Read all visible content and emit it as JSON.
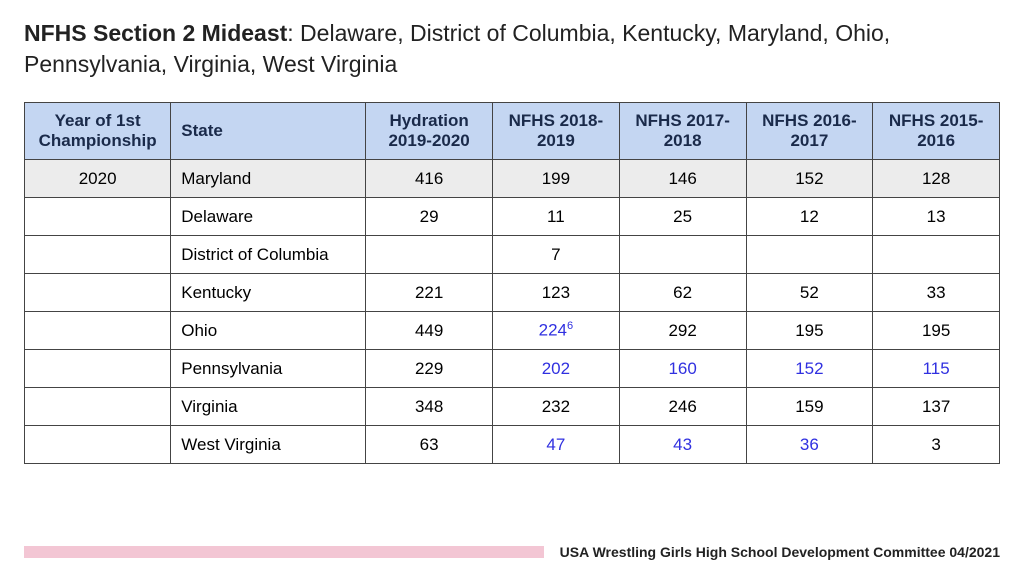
{
  "title": {
    "bold": "NFHS Section 2 Mideast",
    "rest": ": Delaware, District of Columbia, Kentucky, Maryland, Ohio, Pennsylvania, Virginia, West Virginia"
  },
  "table": {
    "headers": {
      "year": "Year of 1st Championship",
      "state": "State",
      "hydration": "Hydration 2019-2020",
      "nfhs1819": "NFHS 2018-2019",
      "nfhs1718": "NFHS 2017-2018",
      "nfhs1617": "NFHS 2016-2017",
      "nfhs1516": "NFHS 2015-2016"
    },
    "rows": [
      {
        "highlight": true,
        "year": "2020",
        "state": "Maryland",
        "cells": [
          {
            "v": "416"
          },
          {
            "v": "199"
          },
          {
            "v": "146"
          },
          {
            "v": "152"
          },
          {
            "v": "128"
          }
        ]
      },
      {
        "year": "",
        "state": "Delaware",
        "cells": [
          {
            "v": "29"
          },
          {
            "v": "11"
          },
          {
            "v": "25"
          },
          {
            "v": "12"
          },
          {
            "v": "13"
          }
        ]
      },
      {
        "year": "",
        "state": "District of Columbia",
        "cells": [
          {
            "v": ""
          },
          {
            "v": "7"
          },
          {
            "v": ""
          },
          {
            "v": ""
          },
          {
            "v": ""
          }
        ]
      },
      {
        "year": "",
        "state": "Kentucky",
        "cells": [
          {
            "v": "221"
          },
          {
            "v": "123"
          },
          {
            "v": "62"
          },
          {
            "v": "52"
          },
          {
            "v": "33"
          }
        ]
      },
      {
        "year": "",
        "state": "Ohio",
        "cells": [
          {
            "v": "449"
          },
          {
            "v": "224",
            "sup": "6",
            "blue": true
          },
          {
            "v": "292"
          },
          {
            "v": "195"
          },
          {
            "v": "195"
          }
        ]
      },
      {
        "year": "",
        "state": "Pennsylvania",
        "cells": [
          {
            "v": "229"
          },
          {
            "v": "202",
            "blue": true
          },
          {
            "v": "160",
            "blue": true
          },
          {
            "v": "152",
            "blue": true
          },
          {
            "v": "115",
            "blue": true
          }
        ]
      },
      {
        "year": "",
        "state": "Virginia",
        "cells": [
          {
            "v": "348"
          },
          {
            "v": "232"
          },
          {
            "v": "246"
          },
          {
            "v": "159"
          },
          {
            "v": "137"
          }
        ]
      },
      {
        "year": "",
        "state": "West Virginia",
        "cells": [
          {
            "v": "63"
          },
          {
            "v": "47",
            "blue": true
          },
          {
            "v": "43",
            "blue": true
          },
          {
            "v": "36",
            "blue": true
          },
          {
            "v": "3"
          }
        ]
      }
    ]
  },
  "footer": {
    "text": "USA Wrestling Girls High School Development Committee 04/2021",
    "pink_bar_color": "#f3c6d4"
  },
  "colors": {
    "header_bg": "#c4d6f2",
    "highlight_bg": "#ececec",
    "border": "#444444",
    "blue_text": "#3030e0",
    "text": "#222222"
  }
}
